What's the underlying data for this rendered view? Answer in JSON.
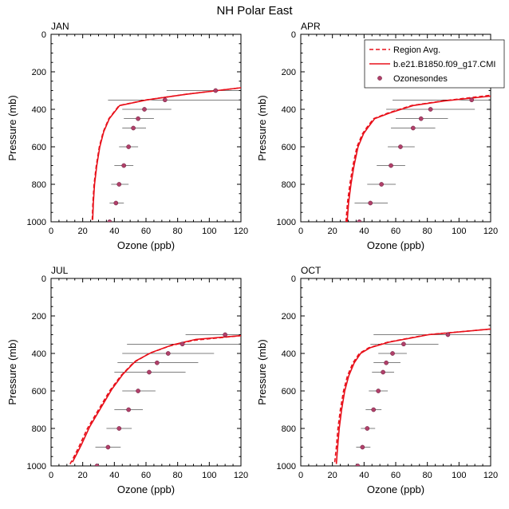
{
  "figure": {
    "title": "NH Polar East"
  },
  "legend": {
    "placement": "top-right of APR panel",
    "entries": [
      {
        "label": "Region Avg.",
        "style": "dashed-line",
        "color": "#e8101a"
      },
      {
        "label": "b.e21.B1850.f09_g17.CMI",
        "style": "solid-line",
        "color": "#e8101a"
      },
      {
        "label": "Ozonesondes",
        "style": "marker",
        "color": "#b0406a"
      }
    ]
  },
  "colors": {
    "model": "#e8101a",
    "marker": "#b0406a",
    "errorbar": "#000000"
  },
  "chart_data": [
    {
      "type": "line",
      "panel_label": "JAN",
      "xlabel": "Ozone (ppb)",
      "ylabel": "Pressure (mb)",
      "xlim": [
        0,
        120
      ],
      "ylim": [
        1000,
        0
      ],
      "xticks": [
        "0",
        "20",
        "40",
        "60",
        "80",
        "100",
        "120"
      ],
      "yticks": [
        "0",
        "200",
        "400",
        "600",
        "800",
        "1000"
      ],
      "grid": false,
      "series": [
        {
          "name": "Region Avg.",
          "style": "dashed",
          "x": [
            26,
            26.4,
            27.2,
            28.6,
            30.5,
            33,
            36.5,
            43,
            60,
            85,
            120
          ],
          "y": [
            990,
            900,
            800,
            700,
            600,
            520,
            450,
            380,
            350,
            320,
            285
          ]
        },
        {
          "name": "b.e21.B1850.f09_g17.CMI",
          "style": "solid",
          "x": [
            26.3,
            26.7,
            27.5,
            28.9,
            30.8,
            33.3,
            36.8,
            43.3,
            60.3,
            85.3,
            120
          ],
          "y": [
            990,
            900,
            800,
            700,
            600,
            520,
            450,
            380,
            350,
            320,
            285
          ]
        }
      ],
      "sondes": [
        {
          "p": 300,
          "o3": 104,
          "lo": 73,
          "hi": 120
        },
        {
          "p": 350,
          "o3": 72,
          "lo": 36,
          "hi": 120
        },
        {
          "p": 400,
          "o3": 59,
          "lo": 45,
          "hi": 76
        },
        {
          "p": 450,
          "o3": 55,
          "lo": 46,
          "hi": 65
        },
        {
          "p": 500,
          "o3": 52,
          "lo": 45,
          "hi": 60
        },
        {
          "p": 600,
          "o3": 49,
          "lo": 43,
          "hi": 55
        },
        {
          "p": 700,
          "o3": 46,
          "lo": 40,
          "hi": 52
        },
        {
          "p": 800,
          "o3": 43,
          "lo": 38,
          "hi": 49
        },
        {
          "p": 900,
          "o3": 41,
          "lo": 37,
          "hi": 46
        },
        {
          "p": 1000,
          "o3": 37,
          "lo": 32,
          "hi": 43
        }
      ]
    },
    {
      "type": "line",
      "panel_label": "APR",
      "xlabel": "Ozone (ppb)",
      "ylabel": "Pressure (mb)",
      "xlim": [
        0,
        120
      ],
      "ylim": [
        1000,
        0
      ],
      "xticks": [
        "0",
        "20",
        "40",
        "60",
        "80",
        "100",
        "120"
      ],
      "yticks": [
        "0",
        "200",
        "400",
        "600",
        "800",
        "1000"
      ],
      "grid": false,
      "series": [
        {
          "name": "Region Avg.",
          "style": "dashed",
          "x": [
            28.6,
            29.5,
            31,
            33,
            35.5,
            39,
            41.5,
            46,
            55,
            70,
            90,
            120
          ],
          "y": [
            1000,
            900,
            800,
            700,
            600,
            530,
            500,
            450,
            420,
            380,
            355,
            325
          ]
        },
        {
          "name": "b.e21.B1850.f09_g17.CMI",
          "style": "solid",
          "x": [
            29.3,
            30.2,
            31.7,
            33.7,
            36.2,
            39.7,
            42.2,
            46.7,
            56,
            71,
            91,
            120
          ],
          "y": [
            1000,
            900,
            800,
            700,
            600,
            530,
            500,
            450,
            420,
            380,
            355,
            330
          ]
        }
      ],
      "sondes": [
        {
          "p": 350,
          "o3": 108,
          "lo": 58,
          "hi": 120
        },
        {
          "p": 400,
          "o3": 82,
          "lo": 54,
          "hi": 110
        },
        {
          "p": 450,
          "o3": 76,
          "lo": 60,
          "hi": 93
        },
        {
          "p": 500,
          "o3": 71,
          "lo": 57,
          "hi": 85
        },
        {
          "p": 600,
          "o3": 63,
          "lo": 55,
          "hi": 72
        },
        {
          "p": 700,
          "o3": 57,
          "lo": 48,
          "hi": 66
        },
        {
          "p": 800,
          "o3": 51,
          "lo": 42,
          "hi": 60
        },
        {
          "p": 900,
          "o3": 44,
          "lo": 34,
          "hi": 55
        },
        {
          "p": 1000,
          "o3": 37,
          "lo": 25,
          "hi": 48
        }
      ]
    },
    {
      "type": "line",
      "panel_label": "JUL",
      "xlabel": "Ozone (ppb)",
      "ylabel": "Pressure (mb)",
      "xlim": [
        0,
        120
      ],
      "ylim": [
        1000,
        0
      ],
      "xticks": [
        "0",
        "20",
        "40",
        "60",
        "80",
        "100",
        "120"
      ],
      "yticks": [
        "0",
        "200",
        "400",
        "600",
        "800",
        "1000"
      ],
      "grid": false,
      "series": [
        {
          "name": "Region Avg.",
          "style": "dashed",
          "x": [
            12,
            14.5,
            17.5,
            23,
            30,
            37,
            44,
            52,
            62,
            75,
            90,
            120
          ],
          "y": [
            990,
            950,
            900,
            800,
            700,
            600,
            520,
            450,
            400,
            360,
            330,
            305
          ]
        },
        {
          "name": "b.e21.B1850.f09_g17.CMI",
          "style": "solid",
          "x": [
            13.5,
            16,
            19,
            24.5,
            31.5,
            38.5,
            45.5,
            53.5,
            63.5,
            76.5,
            91.5,
            120
          ],
          "y": [
            980,
            940,
            890,
            790,
            690,
            590,
            510,
            440,
            395,
            355,
            325,
            305
          ]
        }
      ],
      "sondes": [
        {
          "p": 300,
          "o3": 110,
          "lo": 85,
          "hi": 120
        },
        {
          "p": 350,
          "o3": 83,
          "lo": 48,
          "hi": 120
        },
        {
          "p": 400,
          "o3": 74,
          "lo": 45,
          "hi": 103
        },
        {
          "p": 450,
          "o3": 67,
          "lo": 42,
          "hi": 93
        },
        {
          "p": 500,
          "o3": 62,
          "lo": 40,
          "hi": 85
        },
        {
          "p": 600,
          "o3": 55,
          "lo": 45,
          "hi": 66
        },
        {
          "p": 700,
          "o3": 49,
          "lo": 40,
          "hi": 58
        },
        {
          "p": 800,
          "o3": 43,
          "lo": 35,
          "hi": 51
        },
        {
          "p": 900,
          "o3": 36,
          "lo": 28,
          "hi": 44
        },
        {
          "p": 1000,
          "o3": 29,
          "lo": 23,
          "hi": 35
        }
      ]
    },
    {
      "type": "line",
      "panel_label": "OCT",
      "xlabel": "Ozone (ppb)",
      "ylabel": "Pressure (mb)",
      "xlim": [
        0,
        120
      ],
      "ylim": [
        1000,
        0
      ],
      "xticks": [
        "0",
        "20",
        "40",
        "60",
        "80",
        "100",
        "120"
      ],
      "yticks": [
        "0",
        "200",
        "400",
        "600",
        "800",
        "1000"
      ],
      "grid": false,
      "series": [
        {
          "name": "Region Avg.",
          "style": "dashed",
          "x": [
            21.5,
            22.5,
            23.5,
            25,
            27,
            29.5,
            33,
            37,
            43,
            55,
            80,
            120
          ],
          "y": [
            980,
            900,
            800,
            700,
            600,
            520,
            450,
            400,
            370,
            340,
            300,
            270
          ]
        },
        {
          "name": "b.e21.B1850.f09_g17.CMI",
          "style": "solid",
          "x": [
            22.5,
            23.3,
            24.3,
            25.8,
            27.8,
            30.3,
            33.8,
            37.8,
            43.8,
            55.8,
            80.8,
            120
          ],
          "y": [
            990,
            900,
            800,
            700,
            600,
            520,
            450,
            400,
            370,
            340,
            300,
            270
          ]
        }
      ],
      "sondes": [
        {
          "p": 300,
          "o3": 93,
          "lo": 46,
          "hi": 120
        },
        {
          "p": 350,
          "o3": 65,
          "lo": 44,
          "hi": 87
        },
        {
          "p": 400,
          "o3": 58,
          "lo": 49,
          "hi": 67
        },
        {
          "p": 450,
          "o3": 54,
          "lo": 46,
          "hi": 63
        },
        {
          "p": 500,
          "o3": 52,
          "lo": 45,
          "hi": 59
        },
        {
          "p": 600,
          "o3": 49,
          "lo": 43,
          "hi": 55
        },
        {
          "p": 700,
          "o3": 46,
          "lo": 41,
          "hi": 51
        },
        {
          "p": 800,
          "o3": 42,
          "lo": 38,
          "hi": 47
        },
        {
          "p": 900,
          "o3": 39,
          "lo": 35,
          "hi": 44
        },
        {
          "p": 1000,
          "o3": 36,
          "lo": 31,
          "hi": 41
        }
      ]
    }
  ]
}
